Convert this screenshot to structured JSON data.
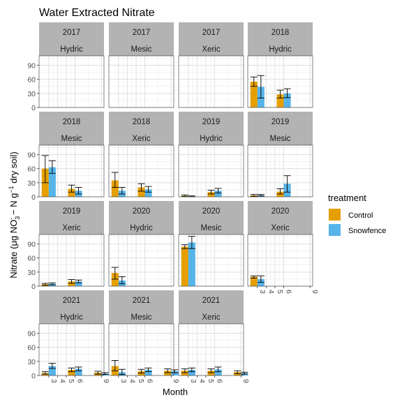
{
  "chart_data": {
    "type": "bar",
    "title": "Water Extracted Nitrate",
    "xlabel": "Month",
    "ylabel": "Nitrate (μg NO3 − N g−1 dry soil)",
    "ylabel_parts": {
      "pre": "Nitrate (",
      "mu": "μ",
      "g": "g NO",
      "sub3": "3",
      "supminus": "-",
      "mid": " − N g",
      "supm1": "−1",
      "post": " dry soil)"
    },
    "x_ticks": [
      "3",
      "4",
      "5",
      "6",
      "9"
    ],
    "y_ticks": [
      0,
      30,
      60,
      90
    ],
    "ylim": [
      0,
      110
    ],
    "grid": true,
    "legend": {
      "title": "treatment",
      "position": "right",
      "entries": [
        {
          "name": "Control",
          "color": "#E69F00"
        },
        {
          "name": "Snowfence",
          "color": "#56B4E9"
        }
      ]
    },
    "panels": [
      {
        "year": "2017",
        "site": "Hydric",
        "bars": []
      },
      {
        "year": "2017",
        "site": "Mesic",
        "bars": []
      },
      {
        "year": "2017",
        "site": "Xeric",
        "bars": []
      },
      {
        "year": "2018",
        "site": "Hydric",
        "bars": [
          {
            "month": 3,
            "treatment": "Control",
            "value": 55,
            "err": [
              45,
              65
            ]
          },
          {
            "month": 3,
            "treatment": "Snowfence",
            "value": 44,
            "err": [
              20,
              68
            ]
          },
          {
            "month": 6,
            "treatment": "Control",
            "value": 28,
            "err": [
              20,
              37
            ]
          },
          {
            "month": 6,
            "treatment": "Snowfence",
            "value": 30,
            "err": [
              21,
              40
            ]
          }
        ]
      },
      {
        "year": "2018",
        "site": "Mesic",
        "bars": [
          {
            "month": 3,
            "treatment": "Control",
            "value": 60,
            "err": [
              30,
              88
            ]
          },
          {
            "month": 3,
            "treatment": "Snowfence",
            "value": 63,
            "err": [
              50,
              77
            ]
          },
          {
            "month": 6,
            "treatment": "Control",
            "value": 17,
            "err": [
              10,
              25
            ]
          },
          {
            "month": 6,
            "treatment": "Snowfence",
            "value": 13,
            "err": [
              6,
              20
            ]
          }
        ]
      },
      {
        "year": "2018",
        "site": "Xeric",
        "bars": [
          {
            "month": 3,
            "treatment": "Control",
            "value": 35,
            "err": [
              20,
              52
            ]
          },
          {
            "month": 3,
            "treatment": "Snowfence",
            "value": 13,
            "err": [
              6,
              20
            ]
          },
          {
            "month": 6,
            "treatment": "Control",
            "value": 20,
            "err": [
              12,
              28
            ]
          },
          {
            "month": 6,
            "treatment": "Snowfence",
            "value": 16,
            "err": [
              10,
              22
            ]
          }
        ]
      },
      {
        "year": "2019",
        "site": "Hydric",
        "bars": [
          {
            "month": 3,
            "treatment": "Control",
            "value": 2,
            "err": [
              1,
              4
            ]
          },
          {
            "month": 3,
            "treatment": "Snowfence",
            "value": 1,
            "err": [
              0,
              2
            ]
          },
          {
            "month": 6,
            "treatment": "Control",
            "value": 10,
            "err": [
              6,
              14
            ]
          },
          {
            "month": 6,
            "treatment": "Snowfence",
            "value": 13,
            "err": [
              8,
              18
            ]
          }
        ]
      },
      {
        "year": "2019",
        "site": "Mesic",
        "bars": [
          {
            "month": 3,
            "treatment": "Control",
            "value": 3,
            "err": [
              1,
              5
            ]
          },
          {
            "month": 3,
            "treatment": "Snowfence",
            "value": 3,
            "err": [
              2,
              5
            ]
          },
          {
            "month": 6,
            "treatment": "Control",
            "value": 11,
            "err": [
              6,
              17
            ]
          },
          {
            "month": 6,
            "treatment": "Snowfence",
            "value": 28,
            "err": [
              10,
              45
            ]
          }
        ]
      },
      {
        "year": "2019",
        "site": "Xeric",
        "bars": [
          {
            "month": 3,
            "treatment": "Control",
            "value": 4,
            "err": [
              2,
              6
            ]
          },
          {
            "month": 3,
            "treatment": "Snowfence",
            "value": 5,
            "err": [
              3,
              7
            ]
          },
          {
            "month": 6,
            "treatment": "Control",
            "value": 10,
            "err": [
              6,
              14
            ]
          },
          {
            "month": 6,
            "treatment": "Snowfence",
            "value": 10,
            "err": [
              7,
              13
            ]
          }
        ]
      },
      {
        "year": "2020",
        "site": "Hydric",
        "bars": [
          {
            "month": 3,
            "treatment": "Control",
            "value": 28,
            "err": [
              15,
              40
            ]
          },
          {
            "month": 3,
            "treatment": "Snowfence",
            "value": 12,
            "err": [
              5,
              20
            ]
          }
        ]
      },
      {
        "year": "2020",
        "site": "Mesic",
        "bars": [
          {
            "month": 3,
            "treatment": "Control",
            "value": 84,
            "err": [
              80,
              88
            ]
          },
          {
            "month": 3,
            "treatment": "Snowfence",
            "value": 93,
            "err": [
              80,
              106
            ]
          }
        ]
      },
      {
        "year": "2020",
        "site": "Xeric",
        "bars": [
          {
            "month": 3,
            "treatment": "Control",
            "value": 20,
            "err": [
              17,
              22
            ]
          },
          {
            "month": 3,
            "treatment": "Snowfence",
            "value": 15,
            "err": [
              8,
              22
            ]
          }
        ]
      },
      {
        "year": "2021",
        "site": "Hydric",
        "bars": [
          {
            "month": 3,
            "treatment": "Control",
            "value": 5,
            "err": [
              3,
              8
            ]
          },
          {
            "month": 3,
            "treatment": "Snowfence",
            "value": 20,
            "err": [
              15,
              26
            ]
          },
          {
            "month": 6,
            "treatment": "Control",
            "value": 12,
            "err": [
              8,
              16
            ]
          },
          {
            "month": 6,
            "treatment": "Snowfence",
            "value": 14,
            "err": [
              10,
              18
            ]
          },
          {
            "month": 9,
            "treatment": "Control",
            "value": 6,
            "err": [
              3,
              9
            ]
          },
          {
            "month": 9,
            "treatment": "Snowfence",
            "value": 4,
            "err": [
              2,
              6
            ]
          }
        ]
      },
      {
        "year": "2021",
        "site": "Mesic",
        "bars": [
          {
            "month": 3,
            "treatment": "Control",
            "value": 20,
            "err": [
              10,
              32
            ]
          },
          {
            "month": 3,
            "treatment": "Snowfence",
            "value": 7,
            "err": [
              2,
              13
            ]
          },
          {
            "month": 6,
            "treatment": "Control",
            "value": 9,
            "err": [
              5,
              13
            ]
          },
          {
            "month": 6,
            "treatment": "Snowfence",
            "value": 12,
            "err": [
              8,
              16
            ]
          },
          {
            "month": 9,
            "treatment": "Control",
            "value": 10,
            "err": [
              6,
              14
            ]
          },
          {
            "month": 9,
            "treatment": "Snowfence",
            "value": 9,
            "err": [
              6,
              12
            ]
          }
        ]
      },
      {
        "year": "2021",
        "site": "Xeric",
        "bars": [
          {
            "month": 3,
            "treatment": "Control",
            "value": 10,
            "err": [
              6,
              14
            ]
          },
          {
            "month": 3,
            "treatment": "Snowfence",
            "value": 12,
            "err": [
              8,
              16
            ]
          },
          {
            "month": 6,
            "treatment": "Control",
            "value": 10,
            "err": [
              6,
              14
            ]
          },
          {
            "month": 6,
            "treatment": "Snowfence",
            "value": 13,
            "err": [
              8,
              18
            ]
          },
          {
            "month": 9,
            "treatment": "Control",
            "value": 7,
            "err": [
              4,
              10
            ]
          },
          {
            "month": 9,
            "treatment": "Snowfence",
            "value": 5,
            "err": [
              3,
              7
            ]
          }
        ]
      }
    ]
  }
}
